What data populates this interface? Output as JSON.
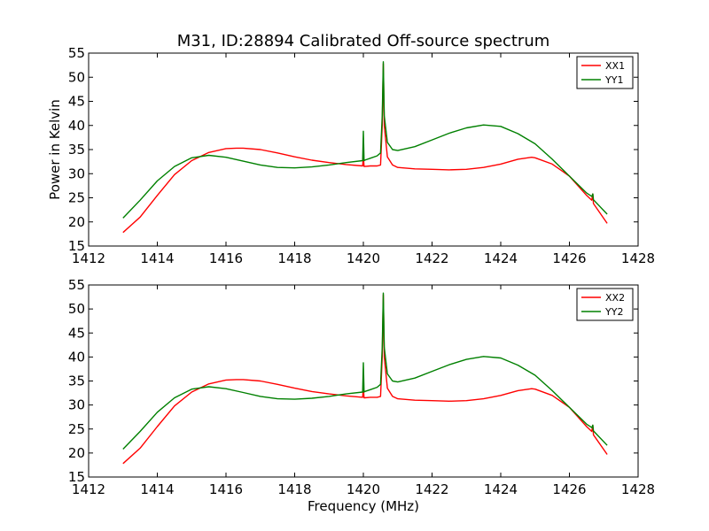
{
  "figure_title": "M31, ID:28894 Calibrated Off-source spectrum",
  "chart_data": [
    {
      "type": "line",
      "title": "M31, ID:28894 Calibrated Off-source spectrum",
      "xlabel": "",
      "ylabel": "Power in Kelvin",
      "xlim": [
        1412,
        1428
      ],
      "ylim": [
        15,
        55
      ],
      "xticks": [
        1412,
        1414,
        1416,
        1418,
        1420,
        1422,
        1424,
        1426,
        1428
      ],
      "yticks": [
        15,
        20,
        25,
        30,
        35,
        40,
        45,
        50,
        55
      ],
      "grid": false,
      "legend_position": "top-right",
      "series": [
        {
          "name": "XX1",
          "color": "#ff0000",
          "x": [
            1413.0,
            1413.5,
            1414.0,
            1414.5,
            1415.0,
            1415.5,
            1416.0,
            1416.3,
            1416.5,
            1417.0,
            1417.5,
            1418.0,
            1418.5,
            1419.0,
            1419.5,
            1419.98,
            1420.0,
            1420.02,
            1420.04,
            1420.2,
            1420.4,
            1420.5,
            1420.55,
            1420.58,
            1420.61,
            1420.7,
            1420.85,
            1421.0,
            1421.5,
            1422.0,
            1422.5,
            1423.0,
            1423.5,
            1424.0,
            1424.5,
            1424.9,
            1425.0,
            1425.5,
            1426.0,
            1426.5,
            1426.65,
            1426.68,
            1426.7,
            1427.1
          ],
          "values": [
            17.8,
            21.0,
            25.5,
            29.8,
            32.7,
            34.4,
            35.2,
            35.3,
            35.3,
            35.0,
            34.3,
            33.5,
            32.8,
            32.3,
            31.9,
            31.6,
            33.6,
            31.5,
            31.5,
            31.6,
            31.6,
            31.8,
            40.0,
            52.8,
            40.0,
            33.5,
            31.8,
            31.3,
            31.0,
            30.9,
            30.8,
            30.9,
            31.3,
            32.0,
            33.0,
            33.4,
            33.3,
            32.0,
            29.5,
            25.5,
            24.5,
            25.8,
            23.8,
            19.7
          ]
        },
        {
          "name": "YY1",
          "color": "#008000",
          "x": [
            1413.0,
            1413.5,
            1414.0,
            1414.5,
            1415.0,
            1415.5,
            1416.0,
            1416.5,
            1417.0,
            1417.5,
            1418.0,
            1418.5,
            1419.0,
            1419.5,
            1419.98,
            1420.0,
            1420.02,
            1420.04,
            1420.2,
            1420.4,
            1420.5,
            1420.55,
            1420.58,
            1420.61,
            1420.7,
            1420.85,
            1421.0,
            1421.5,
            1422.0,
            1422.5,
            1423.0,
            1423.5,
            1424.0,
            1424.5,
            1425.0,
            1425.5,
            1426.0,
            1426.5,
            1426.65,
            1426.68,
            1426.7,
            1427.1
          ],
          "values": [
            20.8,
            24.5,
            28.5,
            31.5,
            33.3,
            33.8,
            33.4,
            32.6,
            31.8,
            31.3,
            31.2,
            31.4,
            31.8,
            32.3,
            32.7,
            38.8,
            32.7,
            32.8,
            33.2,
            33.7,
            34.3,
            42.0,
            53.2,
            42.0,
            36.5,
            35.0,
            34.8,
            35.6,
            37.0,
            38.4,
            39.5,
            40.1,
            39.8,
            38.3,
            36.2,
            33.0,
            29.5,
            26.0,
            25.3,
            25.8,
            24.6,
            21.6
          ]
        }
      ]
    },
    {
      "type": "line",
      "title": "",
      "xlabel": "Frequency (MHz)",
      "ylabel": "",
      "xlim": [
        1412,
        1428
      ],
      "ylim": [
        15,
        55
      ],
      "xticks": [
        1412,
        1414,
        1416,
        1418,
        1420,
        1422,
        1424,
        1426,
        1428
      ],
      "yticks": [
        15,
        20,
        25,
        30,
        35,
        40,
        45,
        50,
        55
      ],
      "grid": false,
      "legend_position": "top-right",
      "series": [
        {
          "name": "XX2",
          "color": "#ff0000",
          "x": [
            1413.0,
            1413.5,
            1414.0,
            1414.5,
            1415.0,
            1415.5,
            1416.0,
            1416.3,
            1416.5,
            1417.0,
            1417.5,
            1418.0,
            1418.5,
            1419.0,
            1419.5,
            1419.98,
            1420.0,
            1420.02,
            1420.04,
            1420.2,
            1420.4,
            1420.5,
            1420.55,
            1420.58,
            1420.61,
            1420.7,
            1420.85,
            1421.0,
            1421.5,
            1422.0,
            1422.5,
            1423.0,
            1423.5,
            1424.0,
            1424.5,
            1424.9,
            1425.0,
            1425.5,
            1426.0,
            1426.5,
            1426.65,
            1426.68,
            1426.7,
            1427.1
          ],
          "values": [
            17.8,
            21.0,
            25.5,
            29.8,
            32.7,
            34.4,
            35.2,
            35.3,
            35.3,
            35.0,
            34.3,
            33.5,
            32.8,
            32.3,
            31.9,
            31.6,
            33.6,
            31.5,
            31.5,
            31.6,
            31.6,
            31.8,
            40.0,
            53.0,
            40.0,
            33.5,
            31.8,
            31.3,
            31.0,
            30.9,
            30.8,
            30.9,
            31.3,
            32.0,
            33.0,
            33.4,
            33.3,
            32.0,
            29.5,
            25.5,
            24.5,
            25.8,
            23.8,
            19.7
          ]
        },
        {
          "name": "YY2",
          "color": "#008000",
          "x": [
            1413.0,
            1413.5,
            1414.0,
            1414.5,
            1415.0,
            1415.5,
            1416.0,
            1416.5,
            1417.0,
            1417.5,
            1418.0,
            1418.5,
            1419.0,
            1419.5,
            1419.98,
            1420.0,
            1420.02,
            1420.04,
            1420.2,
            1420.4,
            1420.5,
            1420.55,
            1420.58,
            1420.61,
            1420.7,
            1420.85,
            1421.0,
            1421.5,
            1422.0,
            1422.5,
            1423.0,
            1423.5,
            1424.0,
            1424.5,
            1425.0,
            1425.5,
            1426.0,
            1426.5,
            1426.65,
            1426.68,
            1426.7,
            1427.1
          ],
          "values": [
            20.8,
            24.5,
            28.5,
            31.5,
            33.3,
            33.8,
            33.4,
            32.6,
            31.8,
            31.3,
            31.2,
            31.4,
            31.8,
            32.3,
            32.7,
            38.8,
            32.7,
            32.8,
            33.2,
            33.7,
            34.3,
            42.0,
            53.3,
            42.0,
            36.5,
            35.0,
            34.8,
            35.6,
            37.0,
            38.4,
            39.5,
            40.1,
            39.8,
            38.3,
            36.2,
            33.0,
            29.5,
            26.0,
            25.3,
            25.8,
            24.6,
            21.6
          ]
        }
      ]
    }
  ]
}
